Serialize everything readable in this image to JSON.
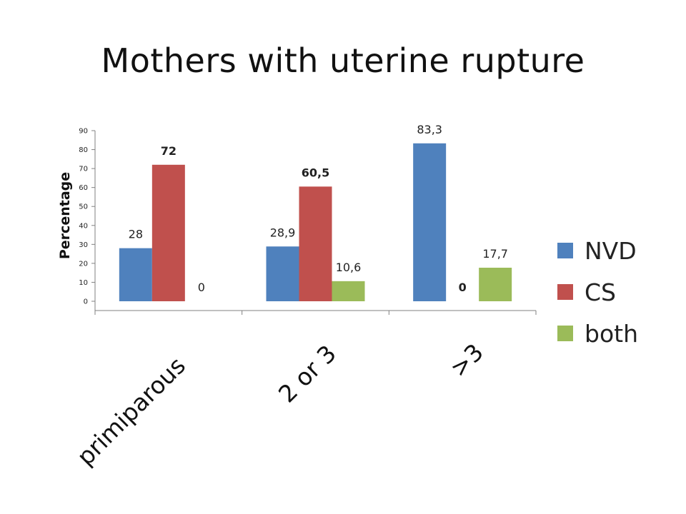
{
  "title": "Mothers with uterine rupture",
  "chart_data": {
    "type": "bar",
    "title": "Mothers with uterine rupture",
    "ylabel": "Percentage",
    "xlabel": "",
    "ylim": [
      0,
      90
    ],
    "yticks": [
      "0",
      "10",
      "20",
      "30",
      "40",
      "50",
      "60",
      "70",
      "80",
      "90"
    ],
    "categories": [
      "primiparous",
      "2 or 3",
      ">3"
    ],
    "series": [
      {
        "name": "NVD",
        "color": "#4f81bd",
        "values": [
          28,
          28.9,
          83.3
        ],
        "labels": [
          "28",
          "28,9",
          "83,3"
        ],
        "bold": [
          false,
          false,
          false
        ]
      },
      {
        "name": "CS",
        "color": "#c0504d",
        "values": [
          72,
          60.5,
          0
        ],
        "labels": [
          "72",
          "60,5",
          "0"
        ],
        "bold": [
          true,
          true,
          true
        ]
      },
      {
        "name": "both",
        "color": "#9bbb59",
        "values": [
          0,
          10.6,
          17.7
        ],
        "labels": [
          "0",
          "10,6",
          "17,7"
        ],
        "bold": [
          false,
          false,
          false
        ]
      }
    ],
    "legend_position": "right",
    "grid": false
  }
}
